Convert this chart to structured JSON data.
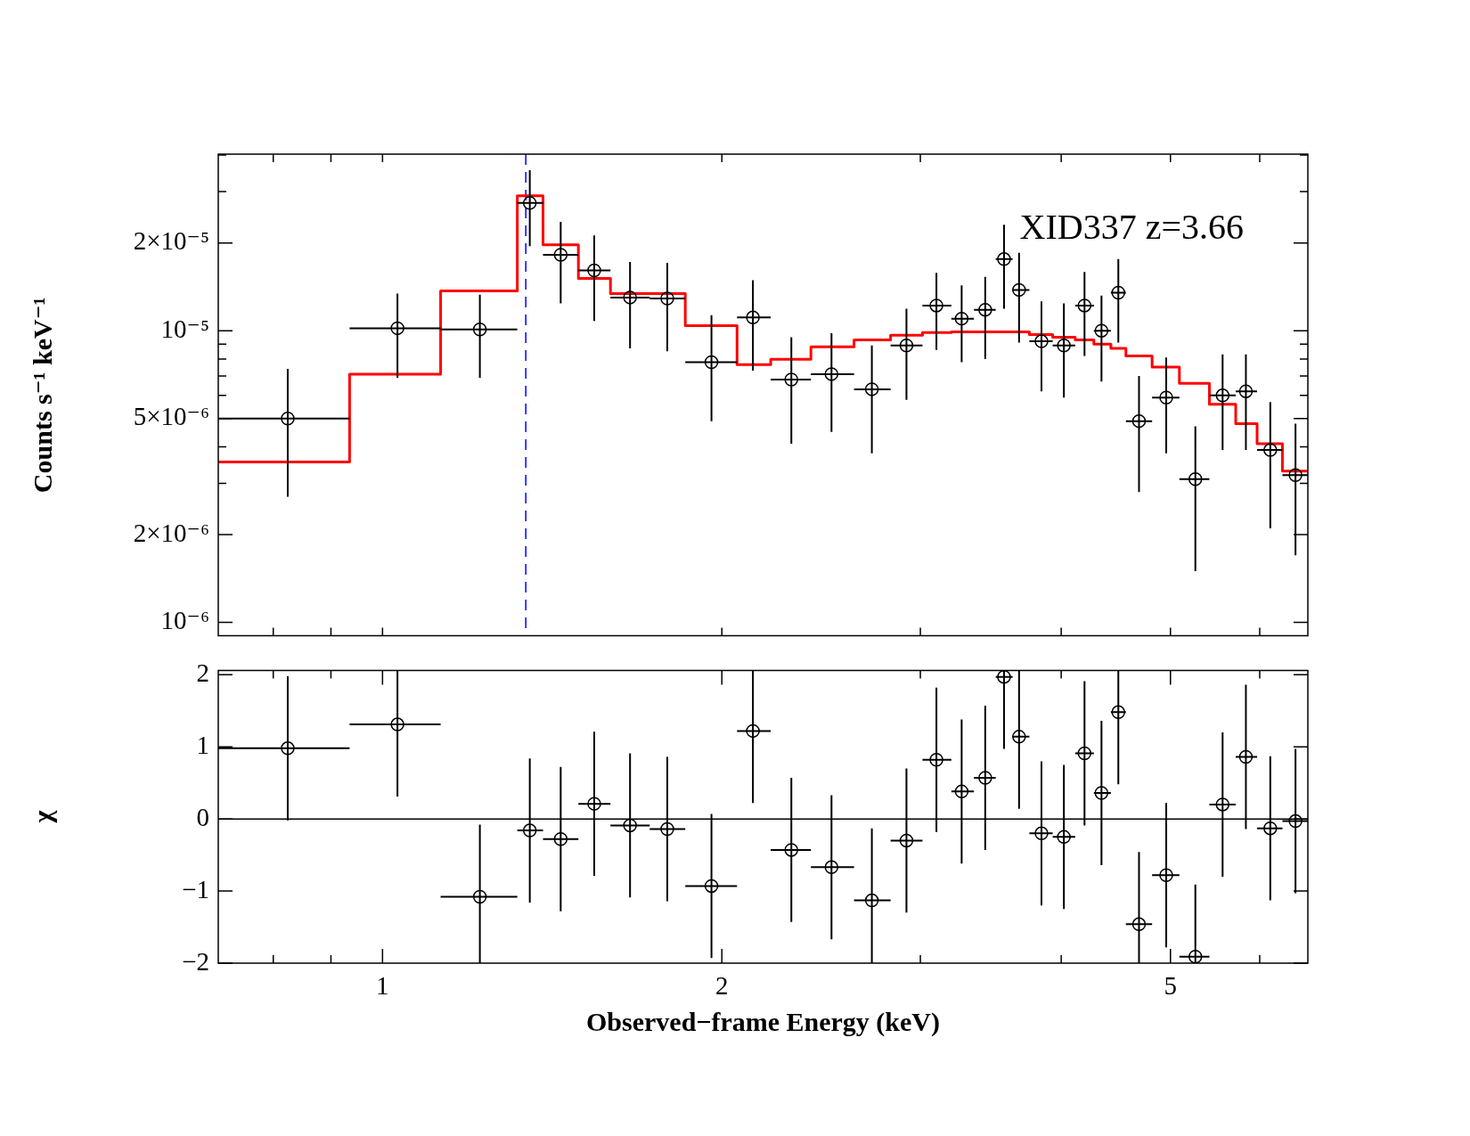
{
  "chart_data": [
    {
      "type": "scatter",
      "ylabel": "Counts s⁻¹ keV⁻¹",
      "log": "xy",
      "grid": false,
      "legend": false,
      "tick_labels": "y",
      "annotations": [
        "XID337 z=3.66"
      ],
      "xlim": [
        0.715,
        6.62
      ],
      "ylim": [
        9e-07,
        4.03e-05
      ],
      "xticks": [
        {
          "value": 0.8,
          "label": null
        },
        {
          "value": 0.9,
          "label": null
        },
        {
          "value": 1,
          "label": null
        },
        {
          "value": 2,
          "label": null
        },
        {
          "value": 3,
          "label": null
        },
        {
          "value": 4,
          "label": null
        },
        {
          "value": 5,
          "label": null
        },
        {
          "value": 6,
          "label": null
        }
      ],
      "yticks": [
        {
          "value": 1e-06,
          "label": "10⁻⁶"
        },
        {
          "value": 2e-06,
          "label": "2×10⁻⁶"
        },
        {
          "value": 3e-06,
          "label": null
        },
        {
          "value": 4e-06,
          "label": null
        },
        {
          "value": 5e-06,
          "label": "5×10⁻⁶"
        },
        {
          "value": 6e-06,
          "label": null
        },
        {
          "value": 7e-06,
          "label": null
        },
        {
          "value": 8e-06,
          "label": null
        },
        {
          "value": 9e-06,
          "label": null
        },
        {
          "value": 1e-05,
          "label": "10⁻⁵"
        },
        {
          "value": 2e-05,
          "label": "2×10⁻⁵"
        },
        {
          "value": 3e-05,
          "label": null
        },
        {
          "value": 4e-05,
          "label": null
        }
      ],
      "ref_lines": [
        {
          "axis": "x",
          "value": 1.34,
          "color": "#0000ff",
          "line_style": "dashed"
        }
      ],
      "series": [
        {
          "color": "#000000",
          "marker": "circle",
          "x": [
            0.824,
            1.031,
            1.22,
            1.351,
            1.439,
            1.541,
            1.658,
            1.789,
            1.958,
            2.131,
            2.305,
            2.502,
            2.717,
            2.916,
            3.1,
            3.264,
            3.425,
            3.559,
            3.67,
            3.842,
            4.022,
            4.195,
            4.343,
            4.495,
            4.689,
            4.957,
            5.261,
            5.562,
            5.833,
            6.131,
            6.455
          ],
          "values": [
            5e-06,
            1.02e-05,
            1.01e-05,
            2.74e-05,
            1.82e-05,
            1.61e-05,
            1.3e-05,
            1.29e-05,
            7.8e-06,
            1.11e-05,
            6.8e-06,
            7.1e-06,
            6.3e-06,
            8.9e-06,
            1.22e-05,
            1.1e-05,
            1.18e-05,
            1.76e-05,
            1.38e-05,
            9.2e-06,
            8.9e-06,
            1.22e-05,
            1e-05,
            1.35e-05,
            4.9e-06,
            5.9e-06,
            3.1e-06,
            6e-06,
            6.2e-06,
            3.9e-06,
            3.2e-06
          ],
          "errors": [
            [
              2.7e-06,
              7.4e-06
            ],
            [
              6.9e-06,
              1.34e-05
            ],
            [
              6.9e-06,
              1.33e-05
            ],
            [
              1.95e-05,
              3.55e-05
            ],
            [
              1.24e-05,
              2.36e-05
            ],
            [
              1.08e-05,
              2.12e-05
            ],
            [
              8.7e-06,
              1.72e-05
            ],
            [
              8.5e-06,
              1.71e-05
            ],
            [
              4.9e-06,
              1.13e-05
            ],
            [
              7.3e-06,
              1.49e-05
            ],
            [
              4.1e-06,
              9.5e-06
            ],
            [
              4.5e-06,
              9.8e-06
            ],
            [
              3.8e-06,
              8.9e-06
            ],
            [
              5.8e-06,
              1.19e-05
            ],
            [
              8.6e-06,
              1.58e-05
            ],
            [
              7.8e-06,
              1.43e-05
            ],
            [
              8e-06,
              1.53e-05
            ],
            [
              1.19e-05,
              2.31e-05
            ],
            [
              9.1e-06,
              1.85e-05
            ],
            [
              6.2e-06,
              1.26e-05
            ],
            [
              5.9e-06,
              1.24e-05
            ],
            [
              8.2e-06,
              1.59e-05
            ],
            [
              6.7e-06,
              1.32e-05
            ],
            [
              9.1e-06,
              1.76e-05
            ],
            [
              2.8e-06,
              7e-06
            ],
            [
              3.8e-06,
              8.1e-06
            ],
            [
              1.5e-06,
              4.7e-06
            ],
            [
              3.9e-06,
              8.3e-06
            ],
            [
              3.9e-06,
              8.3e-06
            ],
            [
              2.1e-06,
              5.7e-06
            ],
            [
              1.7e-06,
              4.8e-06
            ]
          ],
          "xerrors": [
            [
              0.715,
              0.935
            ],
            [
              0.935,
              1.126
            ],
            [
              1.126,
              1.317
            ],
            [
              1.317,
              1.388
            ],
            [
              1.388,
              1.492
            ],
            [
              1.492,
              1.593
            ],
            [
              1.593,
              1.726
            ],
            [
              1.726,
              1.856
            ],
            [
              1.856,
              2.063
            ],
            [
              2.063,
              2.21
            ],
            [
              2.21,
              2.399
            ],
            [
              2.399,
              2.62
            ],
            [
              2.62,
              2.823
            ],
            [
              2.823,
              3.013
            ],
            [
              3.013,
              3.196
            ],
            [
              3.196,
              3.347
            ],
            [
              3.347,
              3.499
            ],
            [
              3.499,
              3.622
            ],
            [
              3.622,
              3.748
            ],
            [
              3.748,
              3.931
            ],
            [
              3.931,
              4.116
            ],
            [
              4.116,
              4.276
            ],
            [
              4.276,
              4.427
            ],
            [
              4.427,
              4.565
            ],
            [
              4.565,
              4.816
            ],
            [
              4.816,
              5.092
            ],
            [
              5.092,
              5.414
            ],
            [
              5.414,
              5.713
            ],
            [
              5.713,
              5.968
            ],
            [
              5.968,
              6.285
            ],
            [
              6.285,
              6.62
            ]
          ]
        },
        {
          "type": "step",
          "color": "#ff0000",
          "x": [
            0.715,
            0.935,
            1.126,
            1.317,
            1.388,
            1.492,
            1.593,
            1.726,
            1.856,
            2.063,
            2.21,
            2.399,
            2.62,
            2.823,
            3.013,
            3.196,
            3.347,
            3.499,
            3.622,
            3.748,
            3.931,
            4.116,
            4.276,
            4.427,
            4.565,
            4.816,
            5.092,
            5.414,
            5.713,
            5.968,
            6.285,
            6.62
          ],
          "values": [
            3.55e-06,
            7.1e-06,
            1.37e-05,
            2.9e-05,
            1.97e-05,
            1.51e-05,
            1.34e-05,
            1.34e-05,
            1.04e-05,
            7.65e-06,
            7.98e-06,
            8.8e-06,
            9.3e-06,
            9.65e-06,
            9.86e-06,
            9.9e-06,
            9.9e-06,
            9.9e-06,
            9.9e-06,
            9.7e-06,
            9.5e-06,
            9.3e-06,
            9e-06,
            8.7e-06,
            8.2e-06,
            7.5e-06,
            6.6e-06,
            5.6e-06,
            4.8e-06,
            4.1e-06,
            3.3e-06,
            3.3e-06
          ]
        }
      ]
    },
    {
      "type": "scatter",
      "xlabel": "Observed−frame Energy (keV)",
      "ylabel": "χ",
      "log": "x",
      "grid": false,
      "legend": false,
      "xlim": [
        0.715,
        6.62
      ],
      "ylim": [
        -2.0,
        2.06
      ],
      "xticks": [
        {
          "value": 0.8,
          "label": null
        },
        {
          "value": 0.9,
          "label": null
        },
        1,
        2,
        {
          "value": 3,
          "label": null
        },
        {
          "value": 4,
          "label": null
        },
        5,
        {
          "value": 6,
          "label": null
        }
      ],
      "yticks": [
        {
          "value": -2,
          "label": "−2"
        },
        {
          "value": -1,
          "label": "−1"
        },
        0,
        1,
        2
      ],
      "ref_lines": [
        {
          "axis": "y",
          "value": 0,
          "color": "#000000",
          "line_style": "solid"
        }
      ],
      "series": [
        {
          "color": "#000000",
          "marker": "circle",
          "x": [
            0.824,
            1.031,
            1.22,
            1.351,
            1.439,
            1.541,
            1.658,
            1.789,
            1.958,
            2.131,
            2.305,
            2.502,
            2.717,
            2.916,
            3.1,
            3.264,
            3.425,
            3.559,
            3.67,
            3.842,
            4.022,
            4.195,
            4.343,
            4.495,
            4.689,
            4.957,
            5.261,
            5.562,
            5.833,
            6.131,
            6.455
          ],
          "values": [
            0.98,
            1.31,
            -1.08,
            -0.16,
            -0.28,
            0.21,
            -0.09,
            -0.14,
            -0.93,
            1.22,
            -0.43,
            -0.67,
            -1.13,
            -0.3,
            0.82,
            0.38,
            0.57,
            1.97,
            1.14,
            -0.2,
            -0.25,
            0.91,
            0.36,
            1.48,
            -1.46,
            -0.78,
            -1.91,
            0.2,
            0.86,
            -0.13,
            -0.03
          ],
          "errors": [
            1,
            [
              0.31,
              2.06
            ],
            [
              -2.0,
              -0.08
            ],
            1,
            1,
            1,
            1,
            1,
            1,
            [
              0.22,
              2.06
            ],
            1,
            1,
            [
              -2.0,
              -0.13
            ],
            1,
            1,
            1,
            1,
            [
              0.97,
              2.06
            ],
            [
              0.14,
              2.06
            ],
            1,
            1,
            1,
            1,
            [
              0.48,
              2.06
            ],
            [
              -2.0,
              -0.46
            ],
            1,
            [
              -2.0,
              -0.91
            ],
            1,
            1,
            1,
            1
          ],
          "xerrors": [
            [
              0.715,
              0.935
            ],
            [
              0.935,
              1.126
            ],
            [
              1.126,
              1.317
            ],
            [
              1.317,
              1.388
            ],
            [
              1.388,
              1.492
            ],
            [
              1.492,
              1.593
            ],
            [
              1.593,
              1.726
            ],
            [
              1.726,
              1.856
            ],
            [
              1.856,
              2.063
            ],
            [
              2.063,
              2.21
            ],
            [
              2.21,
              2.399
            ],
            [
              2.399,
              2.62
            ],
            [
              2.62,
              2.823
            ],
            [
              2.823,
              3.013
            ],
            [
              3.013,
              3.196
            ],
            [
              3.196,
              3.347
            ],
            [
              3.347,
              3.499
            ],
            [
              3.499,
              3.622
            ],
            [
              3.622,
              3.748
            ],
            [
              3.748,
              3.931
            ],
            [
              3.931,
              4.116
            ],
            [
              4.116,
              4.276
            ],
            [
              4.276,
              4.427
            ],
            [
              4.427,
              4.565
            ],
            [
              4.565,
              4.816
            ],
            [
              4.816,
              5.092
            ],
            [
              5.092,
              5.414
            ],
            [
              5.414,
              5.713
            ],
            [
              5.713,
              5.968
            ],
            [
              5.968,
              6.285
            ],
            [
              6.285,
              6.62
            ]
          ]
        }
      ]
    }
  ]
}
